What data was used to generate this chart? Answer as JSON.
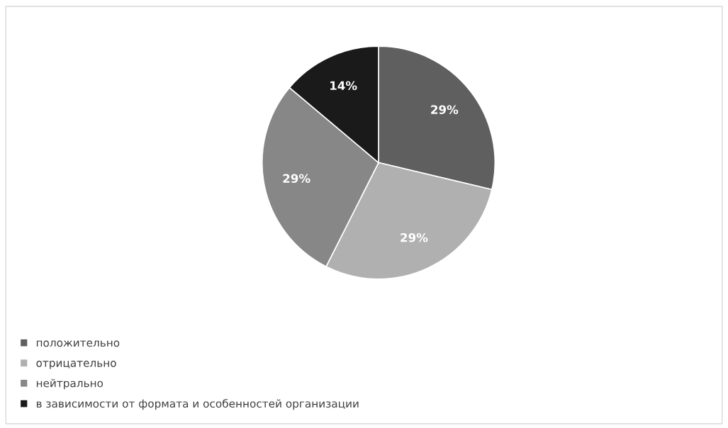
{
  "chart_data": {
    "type": "pie",
    "categories": [
      "положительно",
      "отрицательно",
      "нейтрально",
      "в зависимости от формата и особенностей организации"
    ],
    "values": [
      29,
      29,
      29,
      14
    ],
    "value_labels": [
      "29%",
      "29%",
      "29%",
      "14%"
    ],
    "colors": [
      "#5f5f5f",
      "#b0b0b0",
      "#878787",
      "#1a1a1a"
    ],
    "legend": "bottom left"
  }
}
